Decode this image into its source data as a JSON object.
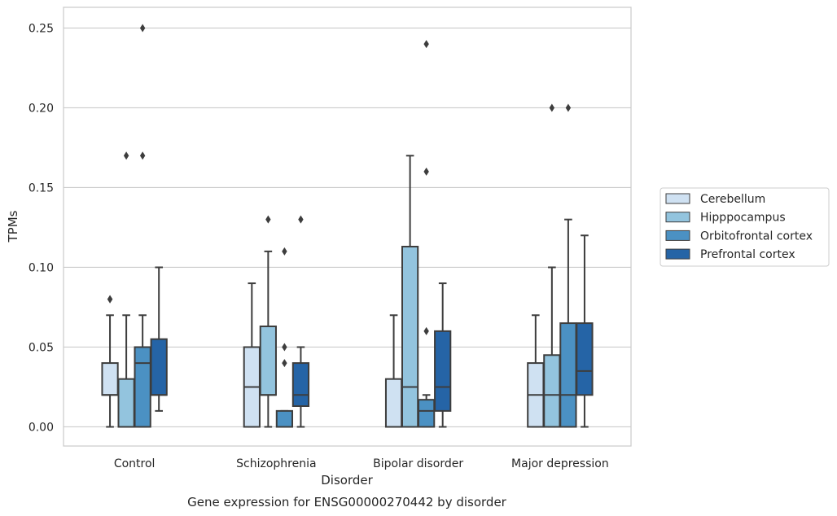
{
  "chart_data": {
    "type": "box",
    "title": "Gene expression for ENSG00000270442 by disorder",
    "xlabel": "Disorder",
    "ylabel": "TPMs",
    "ylim": [
      -0.012,
      0.263
    ],
    "yticks": [
      "0.00",
      "0.05",
      "0.10",
      "0.15",
      "0.20",
      "0.25"
    ],
    "grid": true,
    "legend_position": "right",
    "categories": [
      "Control",
      "Schizophrenia",
      "Bipolar disorder",
      "Major depression"
    ],
    "series": [
      {
        "name": "Cerebellum",
        "color": "#cfe1f2",
        "boxes": [
          {
            "whislo": 0.0,
            "q1": 0.02,
            "med": 0.02,
            "q3": 0.04,
            "whishi": 0.07,
            "fliers": [
              0.08,
              0.08
            ]
          },
          {
            "whislo": 0.0,
            "q1": 0.0,
            "med": 0.025,
            "q3": 0.05,
            "whishi": 0.09,
            "fliers": []
          },
          {
            "whislo": 0.0,
            "q1": 0.0,
            "med": 0.0,
            "q3": 0.03,
            "whishi": 0.07,
            "fliers": []
          },
          {
            "whislo": 0.0,
            "q1": 0.0,
            "med": 0.02,
            "q3": 0.04,
            "whishi": 0.07,
            "fliers": []
          }
        ]
      },
      {
        "name": "Hipppocampus",
        "color": "#93c4de",
        "boxes": [
          {
            "whislo": 0.0,
            "q1": 0.0,
            "med": 0.0,
            "q3": 0.03,
            "whishi": 0.07,
            "fliers": [
              0.17
            ]
          },
          {
            "whislo": 0.0,
            "q1": 0.02,
            "med": 0.02,
            "q3": 0.063,
            "whishi": 0.11,
            "fliers": [
              0.13
            ]
          },
          {
            "whislo": 0.0,
            "q1": 0.0,
            "med": 0.025,
            "q3": 0.113,
            "whishi": 0.17,
            "fliers": []
          },
          {
            "whislo": 0.0,
            "q1": 0.0,
            "med": 0.02,
            "q3": 0.045,
            "whishi": 0.1,
            "fliers": [
              0.2
            ]
          }
        ]
      },
      {
        "name": "Orbitofrontal cortex",
        "color": "#4b91c3",
        "boxes": [
          {
            "whislo": 0.0,
            "q1": 0.0,
            "med": 0.04,
            "q3": 0.05,
            "whishi": 0.07,
            "fliers": [
              0.17,
              0.25
            ]
          },
          {
            "whislo": 0.0,
            "q1": 0.0,
            "med": 0.0,
            "q3": 0.01,
            "whishi": 0.01,
            "fliers": [
              0.04,
              0.05,
              0.11
            ]
          },
          {
            "whislo": 0.0,
            "q1": 0.0,
            "med": 0.01,
            "q3": 0.017,
            "whishi": 0.02,
            "fliers": [
              0.06,
              0.16,
              0.24
            ]
          },
          {
            "whislo": 0.0,
            "q1": 0.0,
            "med": 0.02,
            "q3": 0.065,
            "whishi": 0.13,
            "fliers": [
              0.2
            ]
          }
        ]
      },
      {
        "name": "Prefrontal cortex",
        "color": "#2564a6",
        "boxes": [
          {
            "whislo": 0.01,
            "q1": 0.02,
            "med": 0.02,
            "q3": 0.055,
            "whishi": 0.1,
            "fliers": []
          },
          {
            "whislo": 0.0,
            "q1": 0.013,
            "med": 0.02,
            "q3": 0.04,
            "whishi": 0.05,
            "fliers": [
              0.13
            ]
          },
          {
            "whislo": 0.0,
            "q1": 0.01,
            "med": 0.025,
            "q3": 0.06,
            "whishi": 0.09,
            "fliers": []
          },
          {
            "whislo": 0.0,
            "q1": 0.02,
            "med": 0.035,
            "q3": 0.065,
            "whishi": 0.12,
            "fliers": []
          }
        ]
      }
    ]
  }
}
